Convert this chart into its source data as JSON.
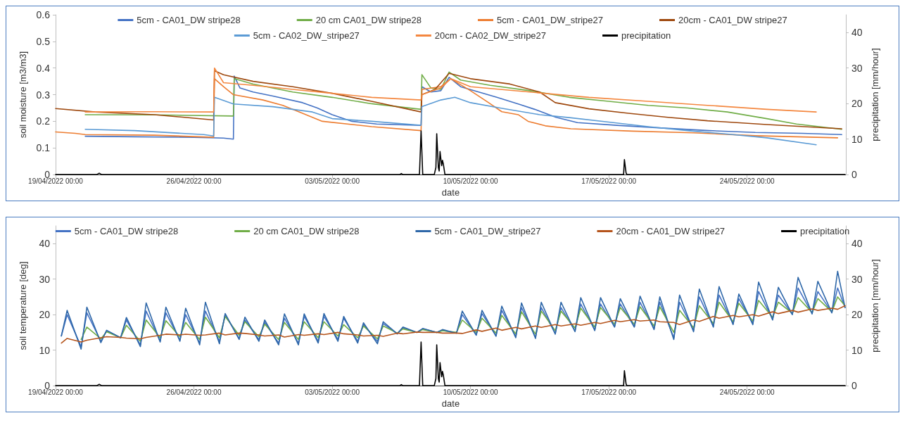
{
  "chart_data": [
    {
      "type": "line",
      "xlabel": "date",
      "ylabel": "soil moisture [m3/m3]",
      "y2label": "precipitation [mm/hour]",
      "xlim": [
        "2022-04-19T00:00",
        "2022-05-29T00:00"
      ],
      "xticks": [
        {
          "value": "2022-04-19T00:00",
          "label": "19/04/2022 00:00"
        },
        {
          "value": "2022-04-26T00:00",
          "label": "26/04/2022 00:00"
        },
        {
          "value": "2022-05-03T00:00",
          "label": "03/05/2022 00:00"
        },
        {
          "value": "2022-05-10T00:00",
          "label": "10/05/2022 00:00"
        },
        {
          "value": "2022-05-17T00:00",
          "label": "17/05/2022 00:00"
        },
        {
          "value": "2022-05-24T00:00",
          "label": "24/05/2022 00:00"
        }
      ],
      "ylim": [
        0,
        0.6
      ],
      "yticks": [
        0,
        0.1,
        0.2,
        0.3,
        0.4,
        0.5,
        0.6
      ],
      "y2lim": [
        0,
        45
      ],
      "y2ticks": [
        0,
        10,
        20,
        30,
        40
      ],
      "legend": "top",
      "marker": "none",
      "line_style": "solid",
      "series": [
        {
          "name": "5cm - CA01_DW stripe28",
          "color": "#4472c4",
          "x": [
            "2022-04-20T12:00",
            "2022-04-23T00:00",
            "2022-04-26T00:00",
            "2022-04-27T12:00",
            "2022-04-28T00:00",
            "2022-04-28T01:00",
            "2022-04-28T08:00",
            "2022-04-29T00:00",
            "2022-04-30T00:00",
            "2022-05-01T12:00",
            "2022-05-02T06:00",
            "2022-05-03T00:00",
            "2022-05-04T00:00",
            "2022-05-05T06:00",
            "2022-05-07T12:00",
            "2022-05-07T13:00",
            "2022-05-08T00:00",
            "2022-05-08T12:00",
            "2022-05-08T22:00",
            "2022-05-09T12:00",
            "2022-05-10T10:00",
            "2022-05-11T08:00",
            "2022-05-12T10:00",
            "2022-05-13T06:00",
            "2022-05-14T08:00",
            "2022-05-15T10:00",
            "2022-05-17T10:00",
            "2022-05-19T16:00",
            "2022-05-22T02:00",
            "2022-05-24T10:00",
            "2022-05-26T19:00",
            "2022-05-28T19:00"
          ],
          "values": [
            0.144,
            0.142,
            0.14,
            0.137,
            0.133,
            0.37,
            0.325,
            0.31,
            0.295,
            0.27,
            0.25,
            0.225,
            0.2,
            0.19,
            0.185,
            0.33,
            0.31,
            0.315,
            0.365,
            0.33,
            0.31,
            0.29,
            0.265,
            0.245,
            0.215,
            0.195,
            0.185,
            0.175,
            0.165,
            0.158,
            0.155,
            0.15
          ]
        },
        {
          "name": "20 cm CA01_DW stripe28",
          "color": "#70ad47",
          "x": [
            "2022-04-20T12:00",
            "2022-04-24T00:00",
            "2022-04-28T00:00",
            "2022-04-28T01:00",
            "2022-04-29T00:00",
            "2022-05-01T00:00",
            "2022-05-03T00:00",
            "2022-05-05T00:00",
            "2022-05-07T12:00",
            "2022-05-07T13:00",
            "2022-05-08T00:00",
            "2022-05-08T12:00",
            "2022-05-08T22:00",
            "2022-05-09T12:00",
            "2022-05-11T00:00",
            "2022-05-13T00:00",
            "2022-05-15T00:00",
            "2022-05-17T00:00",
            "2022-05-19T00:00",
            "2022-05-21T00:00",
            "2022-05-23T00:00",
            "2022-05-25T00:00",
            "2022-05-26T12:00",
            "2022-05-28T19:00"
          ],
          "values": [
            0.225,
            0.224,
            0.22,
            0.36,
            0.34,
            0.31,
            0.29,
            0.266,
            0.245,
            0.375,
            0.325,
            0.32,
            0.385,
            0.355,
            0.335,
            0.315,
            0.29,
            0.275,
            0.26,
            0.25,
            0.235,
            0.21,
            0.19,
            0.17
          ]
        },
        {
          "name": "5cm - CA01_DW_stripe27",
          "color": "#ed7d31",
          "x": [
            "2022-04-19T00:00",
            "2022-04-20T00:00",
            "2022-04-20T12:00",
            "2022-04-24T00:00",
            "2022-04-27T00:00",
            "2022-04-27T01:00",
            "2022-04-27T12:00",
            "2022-04-28T00:00",
            "2022-04-29T12:00",
            "2022-04-30T12:00",
            "2022-05-01T12:00",
            "2022-05-02T12:00",
            "2022-05-05T00:00",
            "2022-05-07T12:00",
            "2022-05-07T13:00",
            "2022-05-08T12:00",
            "2022-05-09T00:00",
            "2022-05-10T00:00",
            "2022-05-10T22:00",
            "2022-05-11T14:00",
            "2022-05-12T10:00",
            "2022-05-12T22:00",
            "2022-05-13T19:00",
            "2022-05-15T02:00",
            "2022-05-18T05:00",
            "2022-05-21T07:00",
            "2022-05-24T10:00",
            "2022-05-28T14:00"
          ],
          "values": [
            0.16,
            0.155,
            0.15,
            0.148,
            0.14,
            0.36,
            0.33,
            0.3,
            0.28,
            0.26,
            0.23,
            0.2,
            0.18,
            0.165,
            0.32,
            0.33,
            0.36,
            0.315,
            0.27,
            0.236,
            0.225,
            0.2,
            0.183,
            0.172,
            0.163,
            0.157,
            0.146,
            0.138
          ]
        },
        {
          "name": "20cm - CA01_DW stripe27",
          "color": "#9e480e",
          "x": [
            "2022-04-19T00:00",
            "2022-04-21T00:00",
            "2022-04-24T00:00",
            "2022-04-27T00:00",
            "2022-04-27T01:00",
            "2022-04-27T12:00",
            "2022-04-29T00:00",
            "2022-05-01T00:00",
            "2022-05-03T00:00",
            "2022-05-05T00:00",
            "2022-05-07T12:00",
            "2022-05-07T13:00",
            "2022-05-08T05:00",
            "2022-05-08T22:00",
            "2022-05-10T00:00",
            "2022-05-12T00:00",
            "2022-05-13T12:00",
            "2022-05-14T07:00",
            "2022-05-16T00:00",
            "2022-05-18T00:00",
            "2022-05-20T00:00",
            "2022-05-22T00:00",
            "2022-05-25T00:00",
            "2022-05-28T19:00"
          ],
          "values": [
            0.248,
            0.235,
            0.225,
            0.205,
            0.39,
            0.375,
            0.35,
            0.33,
            0.305,
            0.275,
            0.235,
            0.3,
            0.32,
            0.38,
            0.36,
            0.34,
            0.31,
            0.27,
            0.247,
            0.23,
            0.215,
            0.202,
            0.188,
            0.172
          ]
        },
        {
          "name": "5cm - CA02_DW_stripe27",
          "color": "#5b9bd5",
          "x": [
            "2022-04-20T12:00",
            "2022-04-23T00:00",
            "2022-04-26T12:00",
            "2022-04-27T00:00",
            "2022-04-27T01:00",
            "2022-04-28T00:00",
            "2022-04-30T00:00",
            "2022-05-02T00:00",
            "2022-05-03T00:00",
            "2022-05-05T00:00",
            "2022-05-07T12:00",
            "2022-05-07T13:00",
            "2022-05-08T12:00",
            "2022-05-09T05:00",
            "2022-05-10T00:00",
            "2022-05-11T12:00",
            "2022-05-13T12:00",
            "2022-05-15T00:00",
            "2022-05-17T00:00",
            "2022-05-19T00:00",
            "2022-05-21T00:00",
            "2022-05-23T00:00",
            "2022-05-25T00:00",
            "2022-05-27T12:00"
          ],
          "values": [
            0.17,
            0.165,
            0.15,
            0.145,
            0.29,
            0.265,
            0.255,
            0.235,
            0.21,
            0.2,
            0.185,
            0.255,
            0.28,
            0.29,
            0.27,
            0.25,
            0.225,
            0.214,
            0.197,
            0.18,
            0.165,
            0.152,
            0.138,
            0.112
          ]
        },
        {
          "name": "20cm - CA02_DW_stripe27",
          "color": "#f4873f",
          "x": [
            "2022-04-20T12:00",
            "2022-04-24T00:00",
            "2022-04-27T00:00",
            "2022-04-27T01:00",
            "2022-04-27T12:00",
            "2022-04-29T00:00",
            "2022-05-01T00:00",
            "2022-05-03T00:00",
            "2022-05-05T00:00",
            "2022-05-07T12:00",
            "2022-05-07T13:00",
            "2022-05-08T12:00",
            "2022-05-09T00:00",
            "2022-05-10T00:00",
            "2022-05-13T00:00",
            "2022-05-16T00:00",
            "2022-05-19T00:00",
            "2022-05-22T00:00",
            "2022-05-25T00:00",
            "2022-05-27T12:00"
          ],
          "values": [
            0.235,
            0.236,
            0.235,
            0.4,
            0.345,
            0.335,
            0.32,
            0.305,
            0.29,
            0.28,
            0.3,
            0.325,
            0.36,
            0.33,
            0.31,
            0.29,
            0.275,
            0.26,
            0.245,
            0.235
          ]
        },
        {
          "name": "precipitation",
          "color": "#000000",
          "axis": "y2",
          "x": [
            "2022-04-19T00:00",
            "2022-04-21T02:00",
            "2022-04-21T05:00",
            "2022-04-21T08:00",
            "2022-05-06T10:00",
            "2022-05-06T12:00",
            "2022-05-06T14:00",
            "2022-05-07T10:00",
            "2022-05-07T12:00",
            "2022-05-07T14:00",
            "2022-05-08T04:00",
            "2022-05-08T06:00",
            "2022-05-08T07:00",
            "2022-05-08T09:00",
            "2022-05-08T10:00",
            "2022-05-08T11:00",
            "2022-05-08T13:00",
            "2022-05-08T14:00",
            "2022-05-08T15:00",
            "2022-05-08T17:00",
            "2022-05-17T18:00",
            "2022-05-17T19:00",
            "2022-05-17T21:00",
            "2022-05-17T22:00",
            "2022-05-28T23:00"
          ],
          "values": [
            0,
            0,
            0.4,
            0,
            0,
            0.3,
            0,
            0,
            12.3,
            0,
            0,
            2,
            11.5,
            2,
            1,
            6.5,
            2.5,
            4,
            3,
            0,
            0,
            4.2,
            0.5,
            0,
            0
          ]
        }
      ]
    },
    {
      "type": "line",
      "xlabel": "date",
      "ylabel": "soil temperature [deg]",
      "y2label": "precipitation [mm/hour]",
      "xlim": [
        "2022-04-19T00:00",
        "2022-05-29T00:00"
      ],
      "xticks": [
        {
          "value": "2022-04-19T00:00",
          "label": "19/04/2022 00:00"
        },
        {
          "value": "2022-04-26T00:00",
          "label": "26/04/2022 00:00"
        },
        {
          "value": "2022-05-03T00:00",
          "label": "03/05/2022 00:00"
        },
        {
          "value": "2022-05-10T00:00",
          "label": "10/05/2022 00:00"
        },
        {
          "value": "2022-05-17T00:00",
          "label": "17/05/2022 00:00"
        },
        {
          "value": "2022-05-24T00:00",
          "label": "24/05/2022 00:00"
        }
      ],
      "ylim": [
        0,
        45
      ],
      "yticks": [
        0,
        10,
        20,
        30,
        40
      ],
      "y2lim": [
        0,
        45
      ],
      "y2ticks": [
        0,
        10,
        20,
        30,
        40
      ],
      "legend": "top",
      "marker": "none",
      "line_style": "solid",
      "x": [
        "2022-04-19T07:00",
        "2022-04-19T14:00",
        "2022-04-20T07:00",
        "2022-04-20T14:00",
        "2022-04-21T07:00",
        "2022-04-21T14:00",
        "2022-04-22T07:00",
        "2022-04-22T14:00",
        "2022-04-23T07:00",
        "2022-04-23T14:00",
        "2022-04-24T07:00",
        "2022-04-24T14:00",
        "2022-04-25T07:00",
        "2022-04-25T14:00",
        "2022-04-26T07:00",
        "2022-04-26T14:00",
        "2022-04-27T07:00",
        "2022-04-27T14:00",
        "2022-04-28T07:00",
        "2022-04-28T14:00",
        "2022-04-29T07:00",
        "2022-04-29T14:00",
        "2022-04-30T07:00",
        "2022-04-30T14:00",
        "2022-05-01T07:00",
        "2022-05-01T14:00",
        "2022-05-02T07:00",
        "2022-05-02T14:00",
        "2022-05-03T07:00",
        "2022-05-03T14:00",
        "2022-05-04T07:00",
        "2022-05-04T14:00",
        "2022-05-05T07:00",
        "2022-05-05T14:00",
        "2022-05-06T07:00",
        "2022-05-06T14:00",
        "2022-05-07T07:00",
        "2022-05-07T14:00",
        "2022-05-08T07:00",
        "2022-05-08T14:00",
        "2022-05-09T07:00",
        "2022-05-09T14:00",
        "2022-05-10T07:00",
        "2022-05-10T14:00",
        "2022-05-11T07:00",
        "2022-05-11T14:00",
        "2022-05-12T07:00",
        "2022-05-12T14:00",
        "2022-05-13T07:00",
        "2022-05-13T14:00",
        "2022-05-14T07:00",
        "2022-05-14T14:00",
        "2022-05-15T07:00",
        "2022-05-15T14:00",
        "2022-05-16T07:00",
        "2022-05-16T14:00",
        "2022-05-17T07:00",
        "2022-05-17T14:00",
        "2022-05-18T07:00",
        "2022-05-18T14:00",
        "2022-05-19T07:00",
        "2022-05-19T14:00",
        "2022-05-20T07:00",
        "2022-05-20T14:00",
        "2022-05-21T07:00",
        "2022-05-21T14:00",
        "2022-05-22T07:00",
        "2022-05-22T14:00",
        "2022-05-23T07:00",
        "2022-05-23T14:00",
        "2022-05-24T07:00",
        "2022-05-24T14:00",
        "2022-05-25T07:00",
        "2022-05-25T14:00",
        "2022-05-26T07:00",
        "2022-05-26T14:00",
        "2022-05-27T07:00",
        "2022-05-27T14:00",
        "2022-05-28T07:00",
        "2022-05-28T14:00",
        "2022-05-28T23:00"
      ],
      "series": [
        {
          "name": "5cm - CA01_DW stripe28",
          "color": "#4472c4",
          "values": [
            14,
            20,
            11,
            20.5,
            12.5,
            15.5,
            13.5,
            18.5,
            11.5,
            21,
            12.5,
            20.5,
            12.8,
            20,
            12,
            21,
            12.5,
            20,
            13.3,
            18.5,
            13,
            17.8,
            12,
            19,
            12,
            19.5,
            12.5,
            19.5,
            13,
            19,
            12.5,
            17.2,
            12.5,
            17.5,
            14.6,
            16.3,
            15,
            16,
            15,
            15.6,
            14.8,
            20,
            14.3,
            20.3,
            14,
            21.2,
            13.8,
            22,
            13.6,
            22,
            14.7,
            22,
            15.4,
            23,
            15.7,
            23,
            16.6,
            23,
            16.6,
            23.5,
            16,
            23.5,
            13.5,
            23.5,
            15.5,
            25,
            16.7,
            25.5,
            17.4,
            24.5,
            17.5,
            26.5,
            18.7,
            25.5,
            20.1,
            27.5,
            20.3,
            26.5,
            20.6,
            27.5,
            22
          ]
        },
        {
          "name": "20 cm CA01_DW stripe28",
          "color": "#70ad47",
          "values": [
            null,
            null,
            13,
            16.5,
            13.2,
            15.2,
            13.5,
            17,
            12.5,
            18.5,
            13.5,
            18.3,
            13.8,
            17.8,
            13,
            19.3,
            13.5,
            19.5,
            14.2,
            18,
            13.8,
            17.3,
            13,
            17.8,
            13,
            18,
            13.5,
            18,
            14,
            17.2,
            13.5,
            16.8,
            13.2,
            16.8,
            14.8,
            16,
            15,
            15.8,
            15,
            15.5,
            15,
            18.5,
            15,
            19,
            14.8,
            19.8,
            14.6,
            20.8,
            14.5,
            21,
            15.5,
            21,
            16.2,
            21.8,
            16.5,
            22,
            17.3,
            22,
            17.3,
            22.2,
            16.8,
            22.2,
            15,
            21.2,
            16.3,
            22.5,
            17.5,
            23.5,
            18,
            23.2,
            18.2,
            24,
            19.3,
            23.5,
            20.4,
            24.8,
            20.6,
            24.5,
            20.8,
            25,
            22.5
          ]
        },
        {
          "name": "5cm - CA01_DW_stripe27",
          "color": "#2e67a8",
          "values": [
            14,
            21.2,
            10.3,
            22.1,
            12.1,
            15.6,
            13.5,
            19.2,
            11,
            23.3,
            12.3,
            22.1,
            12.5,
            21.8,
            11.5,
            23.5,
            11.8,
            20.3,
            13,
            19.3,
            12.5,
            18.5,
            11.5,
            20.2,
            11.5,
            20.2,
            12,
            20.3,
            12.5,
            19.5,
            12,
            17.7,
            11.8,
            18,
            14.6,
            16.5,
            15,
            16.1,
            15,
            15.8,
            14.8,
            21,
            14.2,
            21.2,
            13.9,
            22.4,
            13.5,
            23.3,
            13.3,
            23.5,
            14.5,
            23.5,
            15.2,
            24.8,
            15.5,
            24.8,
            16.5,
            24.5,
            16.5,
            25.2,
            15.8,
            25,
            13,
            25.5,
            15.2,
            27.2,
            16.5,
            27.9,
            17.2,
            25.8,
            17.2,
            29.2,
            18.5,
            27.7,
            20,
            30.5,
            20.2,
            29.4,
            20.5,
            32.2,
            22
          ]
        },
        {
          "name": "20cm - CA01_DW stripe27",
          "color": "#b5541c",
          "values": [
            12,
            13.3,
            12.3,
            12.8,
            13.5,
            13.8,
            13.6,
            13.4,
            13.2,
            13.6,
            14.2,
            14.5,
            14.3,
            14.5,
            14.2,
            14.3,
            14.8,
            14.3,
            14.8,
            14.7,
            14.3,
            14,
            14.3,
            13.7,
            14.4,
            14.2,
            14.6,
            14.4,
            15,
            14.6,
            14.3,
            14,
            14.2,
            13.9,
            14.8,
            14.6,
            15.1,
            15,
            15,
            14.8,
            14.8,
            14.7,
            15.7,
            15.3,
            16.2,
            15.6,
            16.4,
            16,
            16.8,
            16.4,
            17.2,
            16.8,
            17.4,
            17,
            17.8,
            17.5,
            18.4,
            18,
            18.6,
            18.2,
            18.5,
            18,
            17.8,
            17.2,
            18.5,
            18.1,
            19.5,
            19,
            19.8,
            19.4,
            20,
            19.6,
            20.8,
            20.3,
            21.2,
            20.7,
            21.6,
            21.2,
            21.8,
            21.5,
            22.5
          ]
        },
        {
          "name": "precipitation",
          "color": "#000000",
          "axis": "y2",
          "x": [
            "2022-04-19T00:00",
            "2022-04-21T02:00",
            "2022-04-21T05:00",
            "2022-04-21T08:00",
            "2022-05-06T10:00",
            "2022-05-06T12:00",
            "2022-05-06T14:00",
            "2022-05-07T10:00",
            "2022-05-07T12:00",
            "2022-05-07T14:00",
            "2022-05-08T04:00",
            "2022-05-08T06:00",
            "2022-05-08T07:00",
            "2022-05-08T09:00",
            "2022-05-08T10:00",
            "2022-05-08T11:00",
            "2022-05-08T13:00",
            "2022-05-08T14:00",
            "2022-05-08T15:00",
            "2022-05-08T17:00",
            "2022-05-17T18:00",
            "2022-05-17T19:00",
            "2022-05-17T21:00",
            "2022-05-17T22:00",
            "2022-05-28T23:00"
          ],
          "values": [
            0,
            0,
            0.4,
            0,
            0,
            0.3,
            0,
            0,
            12.3,
            0,
            0,
            2,
            11.5,
            2,
            1,
            6.5,
            2.5,
            4,
            3,
            0,
            0,
            4.2,
            0.5,
            0,
            0
          ]
        }
      ]
    }
  ]
}
